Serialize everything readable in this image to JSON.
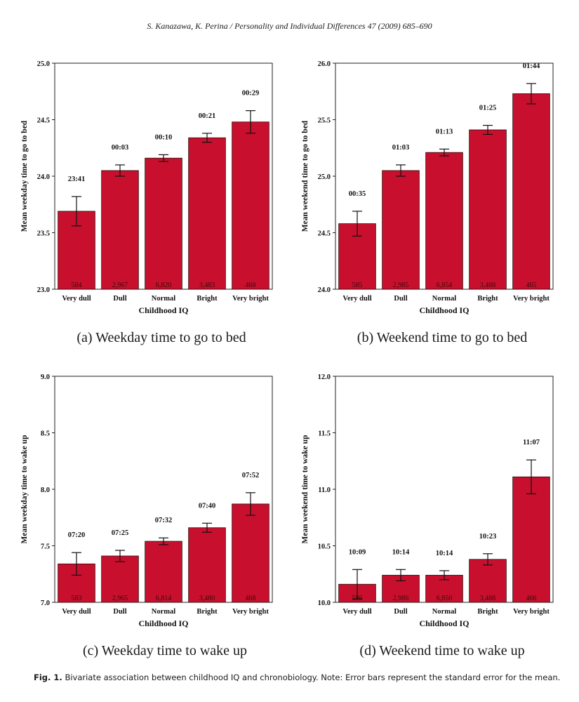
{
  "header": "S. Kanazawa, K. Perina / Personality and Individual Differences 47 (2009) 685–690",
  "caption": {
    "label": "Fig. 1.",
    "text": "Bivariate association between childhood IQ and chronobiology. Note: Error bars represent the standard error for the mean."
  },
  "colors": {
    "bar": "#c8102e",
    "bar_stroke": "#2a0a0a",
    "axis": "#222222"
  },
  "chart_data": [
    {
      "type": "bar",
      "panel": "a",
      "subcaption": "(a) Weekday time to go to bed",
      "xlabel": "Childhood IQ",
      "ylabel": "Mean weekday time to go to bed",
      "ylim": [
        23.0,
        25.0
      ],
      "yticks": [
        "23.0",
        "23.5",
        "24.0",
        "24.5",
        "25.0"
      ],
      "categories": [
        "Very dull",
        "Dull",
        "Normal",
        "Bright",
        "Very bright"
      ],
      "values": [
        23.69,
        24.05,
        24.16,
        24.34,
        24.48
      ],
      "errors": [
        0.13,
        0.05,
        0.03,
        0.04,
        0.1
      ],
      "time_labels": [
        "23:41",
        "00:03",
        "00:10",
        "00:21",
        "00:29"
      ],
      "n_labels": [
        "584",
        "2,967",
        "6,820",
        "3,483",
        "468"
      ]
    },
    {
      "type": "bar",
      "panel": "b",
      "subcaption": "(b) Weekend time to go to bed",
      "xlabel": "Childhood IQ",
      "ylabel": "Mean weekend time to go to bed",
      "ylim": [
        24.0,
        26.0
      ],
      "yticks": [
        "24.0",
        "24.5",
        "25.0",
        "25.5",
        "26.0"
      ],
      "categories": [
        "Very dull",
        "Dull",
        "Normal",
        "Bright",
        "Very bright"
      ],
      "values": [
        24.58,
        25.05,
        25.21,
        25.41,
        25.73
      ],
      "errors": [
        0.11,
        0.05,
        0.03,
        0.04,
        0.09
      ],
      "time_labels": [
        "00:35",
        "01:03",
        "01:13",
        "01:25",
        "01:44"
      ],
      "n_labels": [
        "585",
        "2,985",
        "6,854",
        "3,488",
        "465"
      ]
    },
    {
      "type": "bar",
      "panel": "c",
      "subcaption": "(c) Weekday time to wake up",
      "xlabel": "Childhood IQ",
      "ylabel": "Mean weekday time to wake up",
      "ylim": [
        7.0,
        9.0
      ],
      "yticks": [
        "7.0",
        "7.5",
        "8.0",
        "8.5",
        "9.0"
      ],
      "categories": [
        "Very dull",
        "Dull",
        "Normal",
        "Bright",
        "Very bright"
      ],
      "values": [
        7.34,
        7.41,
        7.54,
        7.66,
        7.87
      ],
      "errors": [
        0.1,
        0.05,
        0.03,
        0.04,
        0.1
      ],
      "time_labels": [
        "07:20",
        "07:25",
        "07:32",
        "07:40",
        "07:52"
      ],
      "n_labels": [
        "583",
        "2,965",
        "6,814",
        "3,480",
        "468"
      ]
    },
    {
      "type": "bar",
      "panel": "d",
      "subcaption": "(d) Weekend time to wake up",
      "xlabel": "Childhood IQ",
      "ylabel": "Mean weekend time to wake up",
      "ylim": [
        10.0,
        12.0
      ],
      "yticks": [
        "10.0",
        "10.5",
        "11.0",
        "11.5",
        "12.0"
      ],
      "categories": [
        "Very dull",
        "Dull",
        "Normal",
        "Bright",
        "Very bright"
      ],
      "values": [
        10.16,
        10.24,
        10.24,
        10.38,
        11.11
      ],
      "errors": [
        0.13,
        0.05,
        0.04,
        0.05,
        0.15
      ],
      "time_labels": [
        "10:09",
        "10:14",
        "10:14",
        "10:23",
        "11:07"
      ],
      "n_labels": [
        "586",
        "2,986",
        "6,850",
        "3,488",
        "466"
      ]
    }
  ]
}
